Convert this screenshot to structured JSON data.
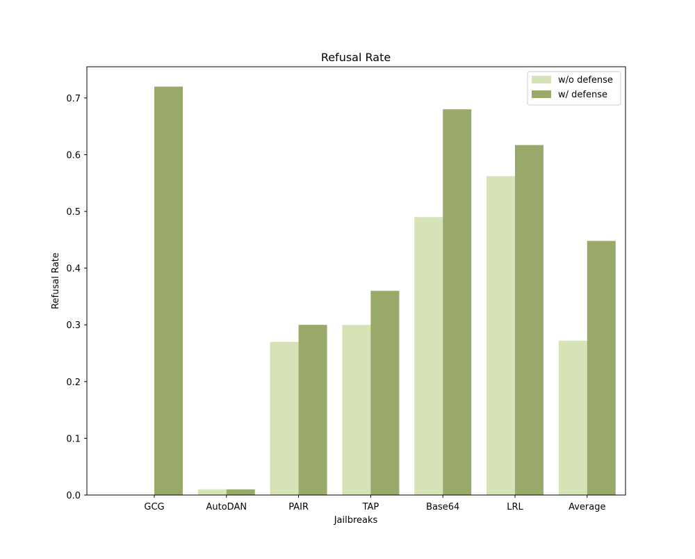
{
  "chart_data": {
    "type": "bar",
    "title": "Refusal Rate",
    "xlabel": "Jailbreaks",
    "ylabel": "Refusal Rate",
    "categories": [
      "GCG",
      "AutoDAN",
      "PAIR",
      "TAP",
      "Base64",
      "LRL",
      "Average"
    ],
    "series": [
      {
        "name": "w/o defense",
        "color": "#d6e3b7",
        "values": [
          0.0,
          0.01,
          0.27,
          0.3,
          0.49,
          0.562,
          0.272
        ]
      },
      {
        "name": "w/ defense",
        "color": "#98a969",
        "values": [
          0.72,
          0.01,
          0.3,
          0.36,
          0.68,
          0.617,
          0.448
        ]
      }
    ],
    "ylim": [
      0,
      0.755
    ],
    "yticks": [
      "0.0",
      "0.1",
      "0.2",
      "0.3",
      "0.4",
      "0.5",
      "0.6",
      "0.7"
    ],
    "legend": "top-right",
    "grid": false
  }
}
